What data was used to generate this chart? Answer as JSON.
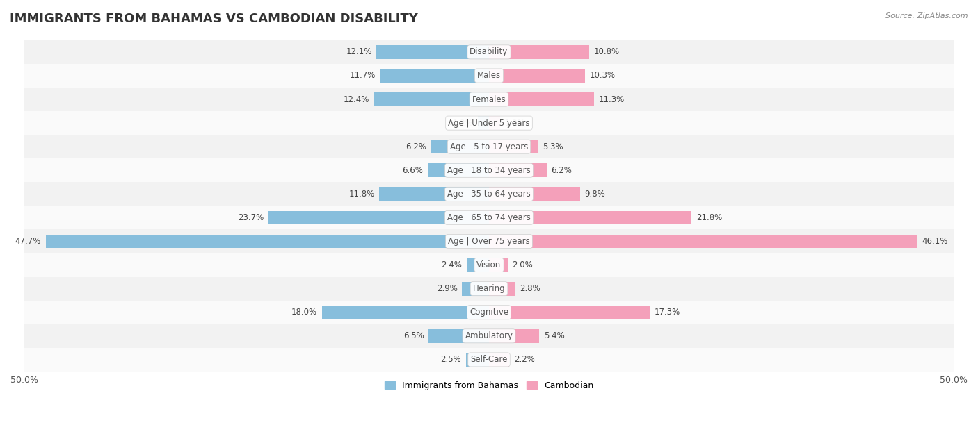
{
  "title": "IMMIGRANTS FROM BAHAMAS VS CAMBODIAN DISABILITY",
  "source": "Source: ZipAtlas.com",
  "categories": [
    "Disability",
    "Males",
    "Females",
    "Age | Under 5 years",
    "Age | 5 to 17 years",
    "Age | 18 to 34 years",
    "Age | 35 to 64 years",
    "Age | 65 to 74 years",
    "Age | Over 75 years",
    "Vision",
    "Hearing",
    "Cognitive",
    "Ambulatory",
    "Self-Care"
  ],
  "bahamas_values": [
    12.1,
    11.7,
    12.4,
    1.2,
    6.2,
    6.6,
    11.8,
    23.7,
    47.7,
    2.4,
    2.9,
    18.0,
    6.5,
    2.5
  ],
  "cambodian_values": [
    10.8,
    10.3,
    11.3,
    1.2,
    5.3,
    6.2,
    9.8,
    21.8,
    46.1,
    2.0,
    2.8,
    17.3,
    5.4,
    2.2
  ],
  "bahamas_color": "#87BEDC",
  "cambodian_color": "#F4A0BA",
  "bahamas_label": "Immigrants from Bahamas",
  "cambodian_label": "Cambodian",
  "axis_limit": 50.0,
  "bar_height": 0.58,
  "row_bg_even": "#f2f2f2",
  "row_bg_odd": "#fafafa",
  "title_fontsize": 13,
  "value_fontsize": 8.5,
  "category_fontsize": 8.5,
  "legend_fontsize": 9,
  "tick_fontsize": 9
}
